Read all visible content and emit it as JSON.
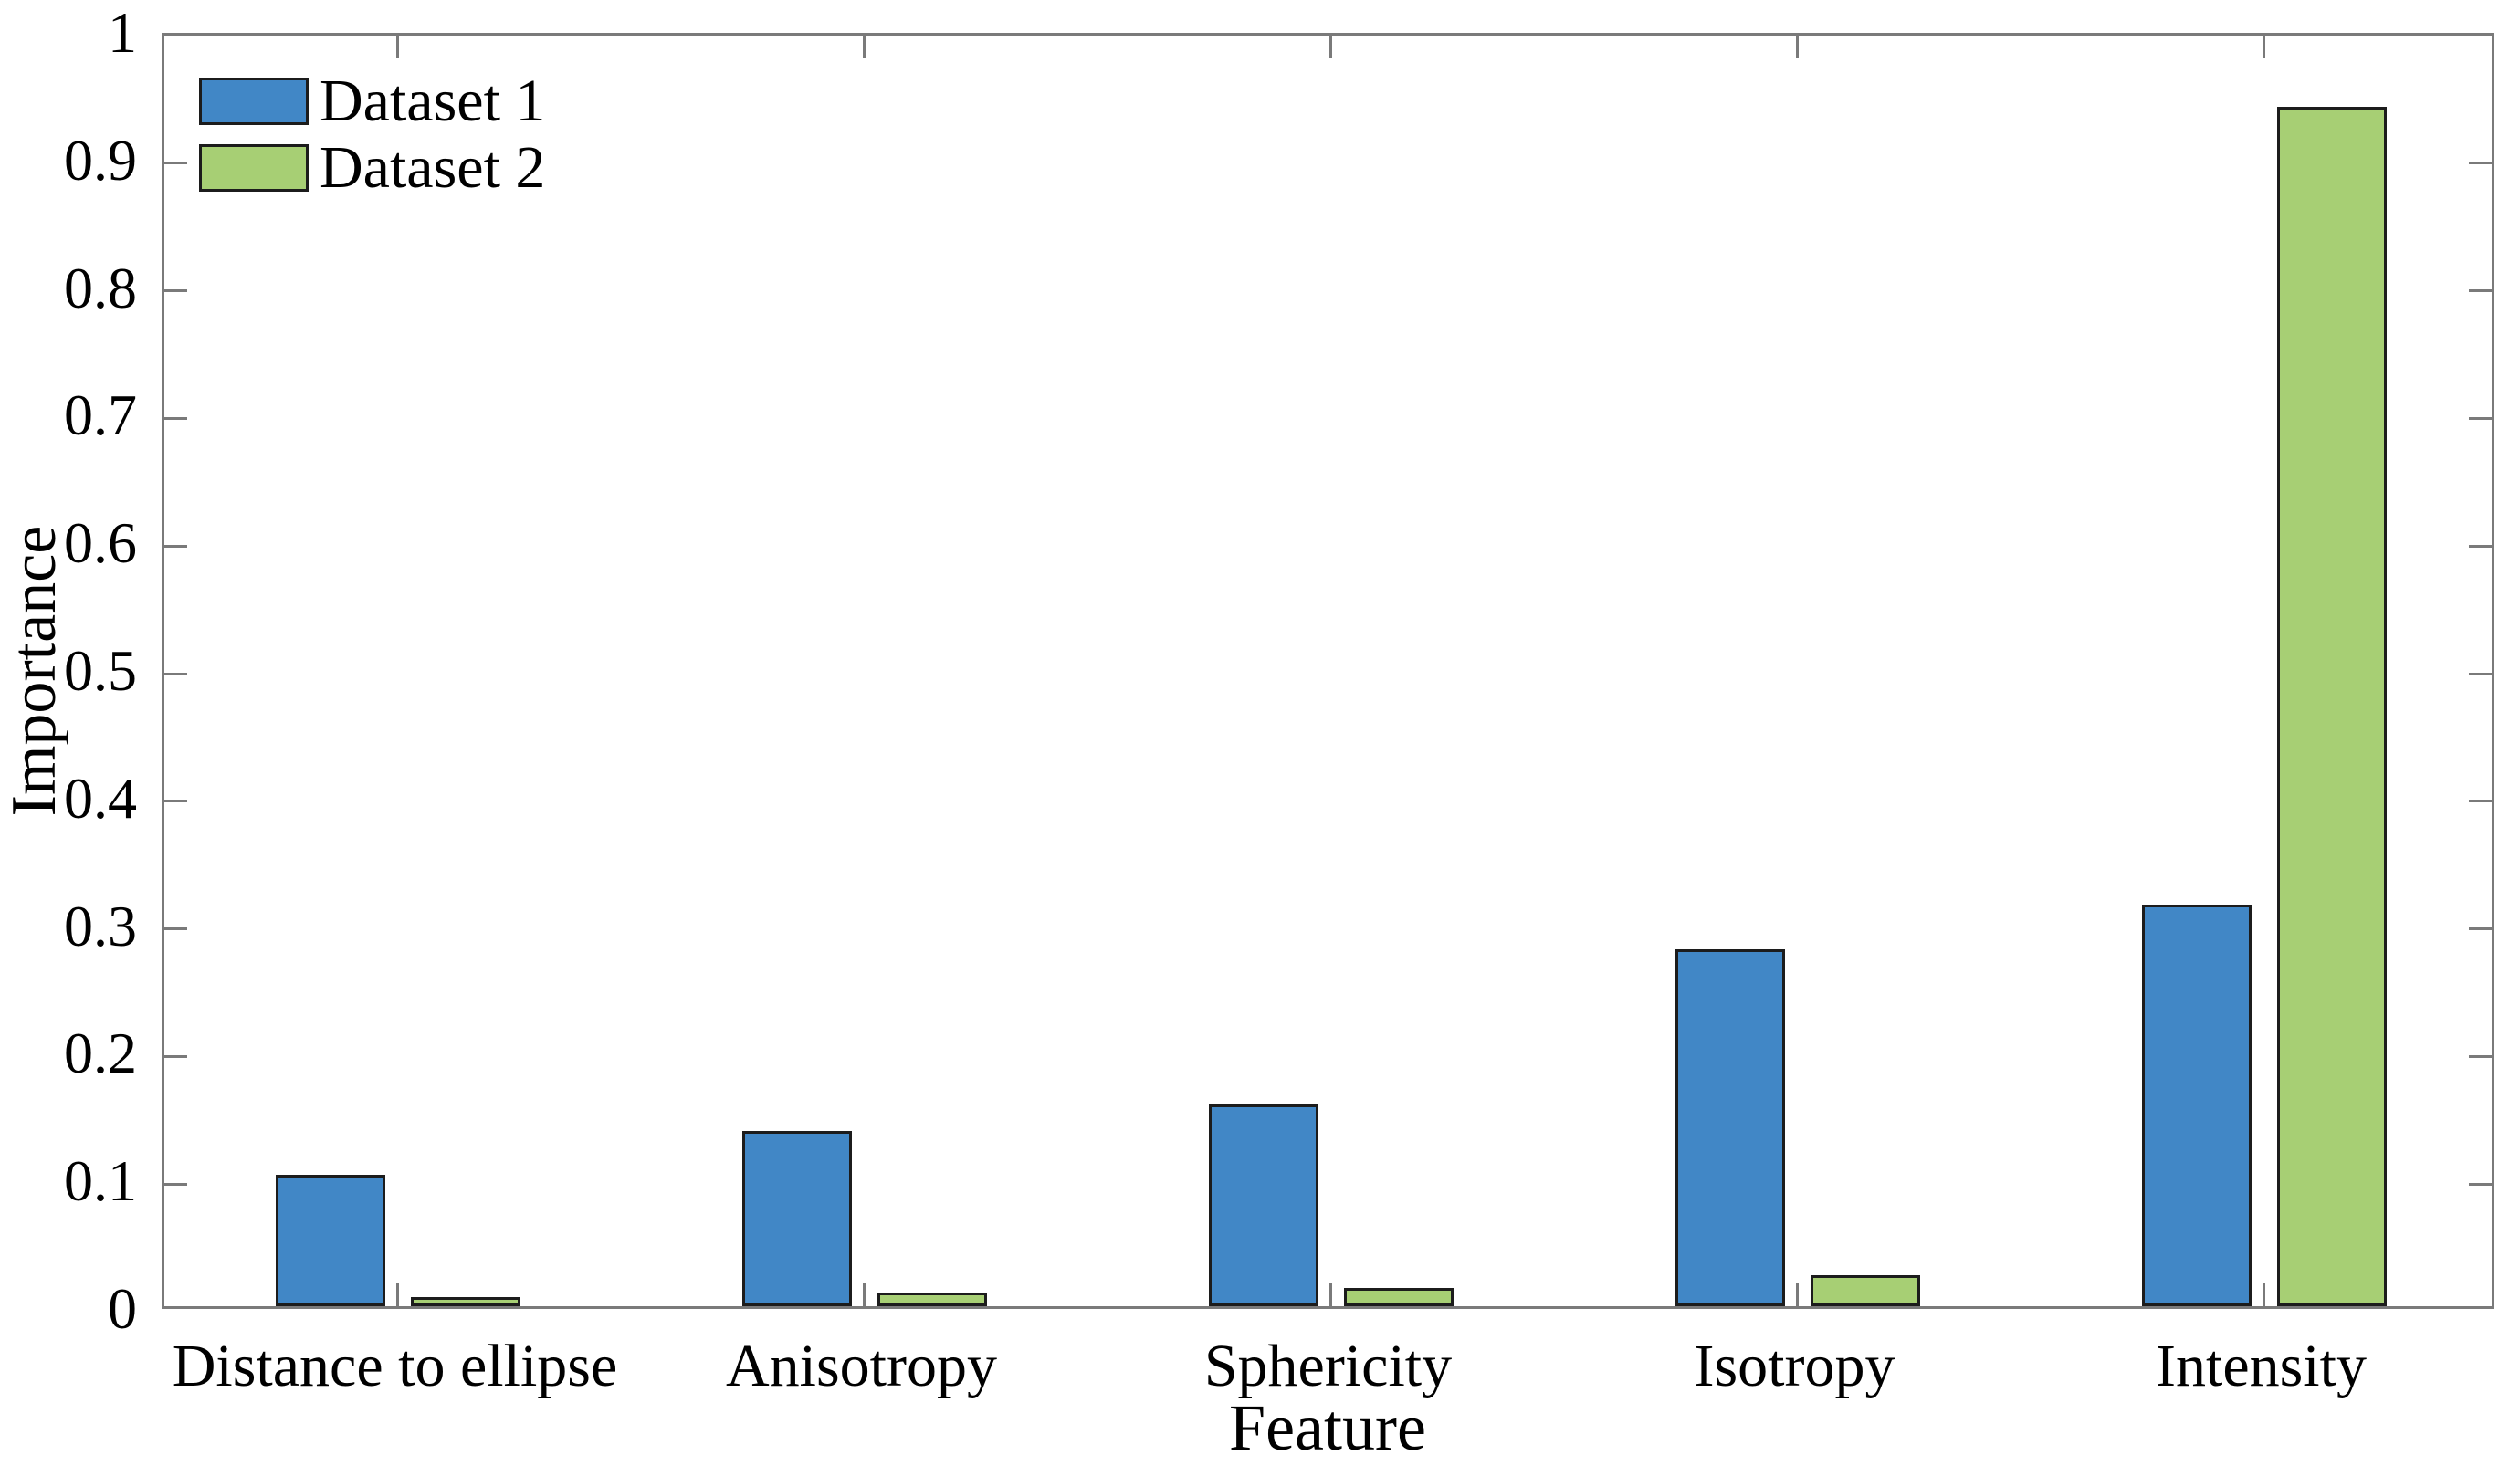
{
  "chart_data": {
    "type": "bar",
    "title": "",
    "xlabel": "Feature",
    "ylabel": "Importance",
    "categories": [
      "Distance to ellipse",
      "Anisotropy",
      "Sphericity",
      "Isotropy",
      "Intensity"
    ],
    "series": [
      {
        "name": "Dataset 1",
        "color": "#4187C6",
        "values": [
          0.103,
          0.137,
          0.158,
          0.28,
          0.315
        ]
      },
      {
        "name": "Dataset 2",
        "color": "#A7CF74",
        "values": [
          0.007,
          0.011,
          0.014,
          0.024,
          0.94
        ]
      }
    ],
    "ylim": [
      0,
      1
    ],
    "yticks": [
      0,
      0.1,
      0.2,
      0.3,
      0.4,
      0.5,
      0.6,
      0.7,
      0.8,
      0.9,
      1
    ],
    "ytick_labels": [
      "0",
      "0.1",
      "0.2",
      "0.3",
      "0.4",
      "0.5",
      "0.6",
      "0.7",
      "0.8",
      "0.9",
      "1"
    ],
    "grid": false,
    "legend_position": "top-left",
    "legend_frame": false,
    "bar_edge_color": "#1c1c1c",
    "axis_color": "#7a7a7a",
    "text_color": "#000000",
    "tick_direction": "in"
  }
}
